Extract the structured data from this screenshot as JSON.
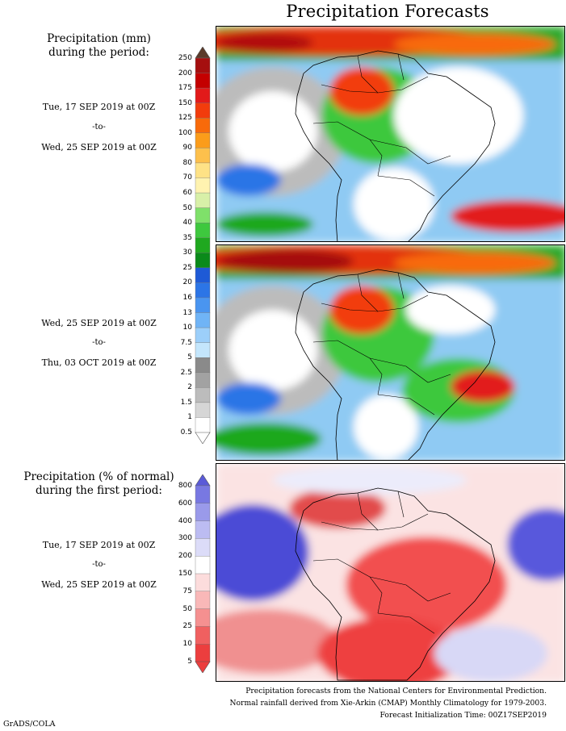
{
  "title": "Precipitation Forecasts",
  "panel1": {
    "header_line1": "Precipitation (mm)",
    "header_line2": "during the period:",
    "start": "Tue, 17 SEP 2019 at 00Z",
    "to": "-to-",
    "end": "Wed, 25 SEP 2019 at 00Z"
  },
  "panel2": {
    "start": "Wed, 25 SEP 2019 at 00Z",
    "to": "-to-",
    "end": "Thu, 03 OCT 2019 at 00Z"
  },
  "panel3": {
    "header_line1": "Precipitation (% of normal)",
    "header_line2": "during the first period:",
    "start": "Tue, 17 SEP 2019 at 00Z",
    "to": "-to-",
    "end": "Wed, 25 SEP 2019 at 00Z"
  },
  "precip_scale": {
    "labels": [
      "250",
      "200",
      "175",
      "150",
      "125",
      "100",
      "90",
      "80",
      "70",
      "60",
      "50",
      "40",
      "35",
      "30",
      "25",
      "20",
      "16",
      "13",
      "10",
      "7.5",
      "5",
      "2.5",
      "2",
      "1.5",
      "1",
      "0.5"
    ],
    "colors": [
      "#8a0a0a",
      "#a50f0f",
      "#c40000",
      "#e21a1a",
      "#f23c0c",
      "#f86a0a",
      "#fb9c1a",
      "#fdc04c",
      "#fee286",
      "#fff3b0",
      "#d8f0a8",
      "#7fe06a",
      "#3ec83e",
      "#1fa81f",
      "#0a8a1a",
      "#1e5ad6",
      "#2c75e6",
      "#4a95f0",
      "#70b4f6",
      "#9ccffa",
      "#c4e6fc",
      "#8a8a8a",
      "#a2a2a2",
      "#bcbcbc",
      "#d6d6d6",
      "#ffffff"
    ],
    "top_arrow_color": "#5a3a2a"
  },
  "pct_scale": {
    "labels": [
      "800",
      "600",
      "400",
      "300",
      "200",
      "150",
      "75",
      "50",
      "25",
      "10",
      "5"
    ],
    "colors": [
      "#5a5ad8",
      "#7878e2",
      "#9a9aea",
      "#bcbcf2",
      "#dcdcf8",
      "#ffffff",
      "#fcdcdc",
      "#f9b8b8",
      "#f59090",
      "#f06060",
      "#ec3e3e"
    ]
  },
  "footer": {
    "line1": "Precipitation forecasts from the National Centers for Environmental Prediction.",
    "line2": "Normal rainfall derived from Xie-Arkin (CMAP) Monthly Climatology for 1979-2003.",
    "line3": "Forecast Initialization Time: 00Z17SEP2019"
  },
  "credit": "GrADS/COLA"
}
